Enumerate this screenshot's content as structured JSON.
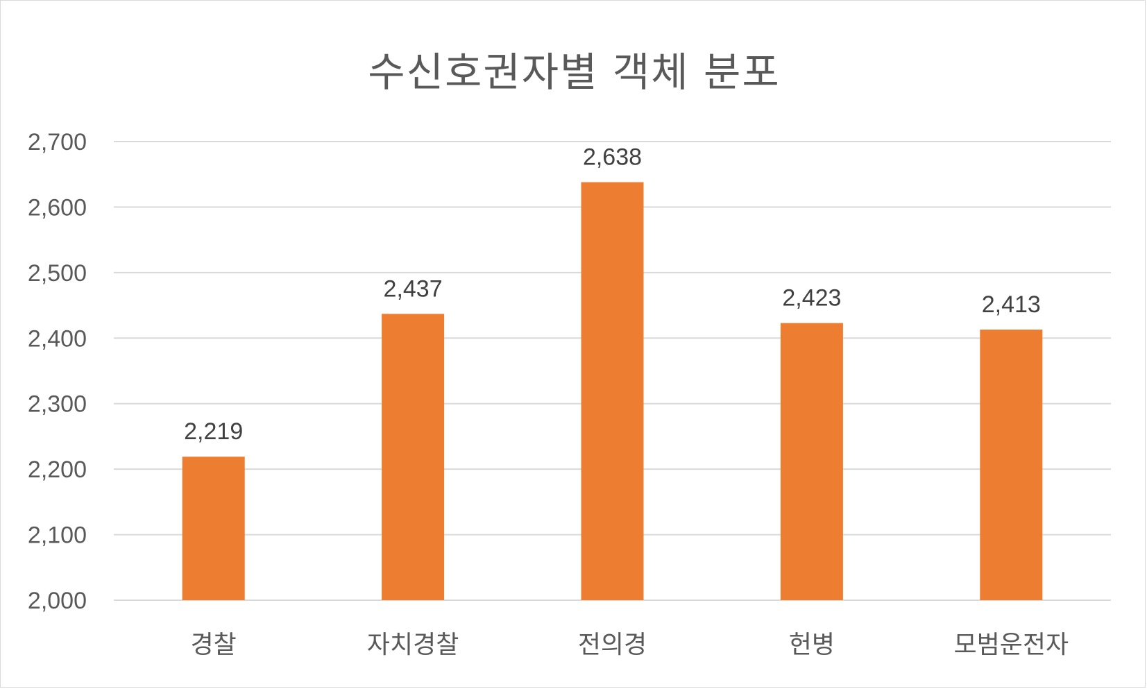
{
  "chart_data": {
    "type": "bar",
    "title": "수신호권자별 객체 분포",
    "xlabel": "",
    "ylabel": "",
    "categories": [
      "경찰",
      "자치경찰",
      "전의경",
      "헌병",
      "모범운전자"
    ],
    "values": [
      2219,
      2437,
      2638,
      2423,
      2413
    ],
    "data_labels": [
      "2,219",
      "2,437",
      "2,638",
      "2,423",
      "2,413"
    ],
    "ylim": [
      2000,
      2700
    ],
    "yticks": [
      2000,
      2100,
      2200,
      2300,
      2400,
      2500,
      2600,
      2700
    ],
    "ytick_labels": [
      "2,000",
      "2,100",
      "2,200",
      "2,300",
      "2,400",
      "2,500",
      "2,600",
      "2,700"
    ],
    "grid": true,
    "legend": "none",
    "bar_color": "#ed7d31"
  }
}
